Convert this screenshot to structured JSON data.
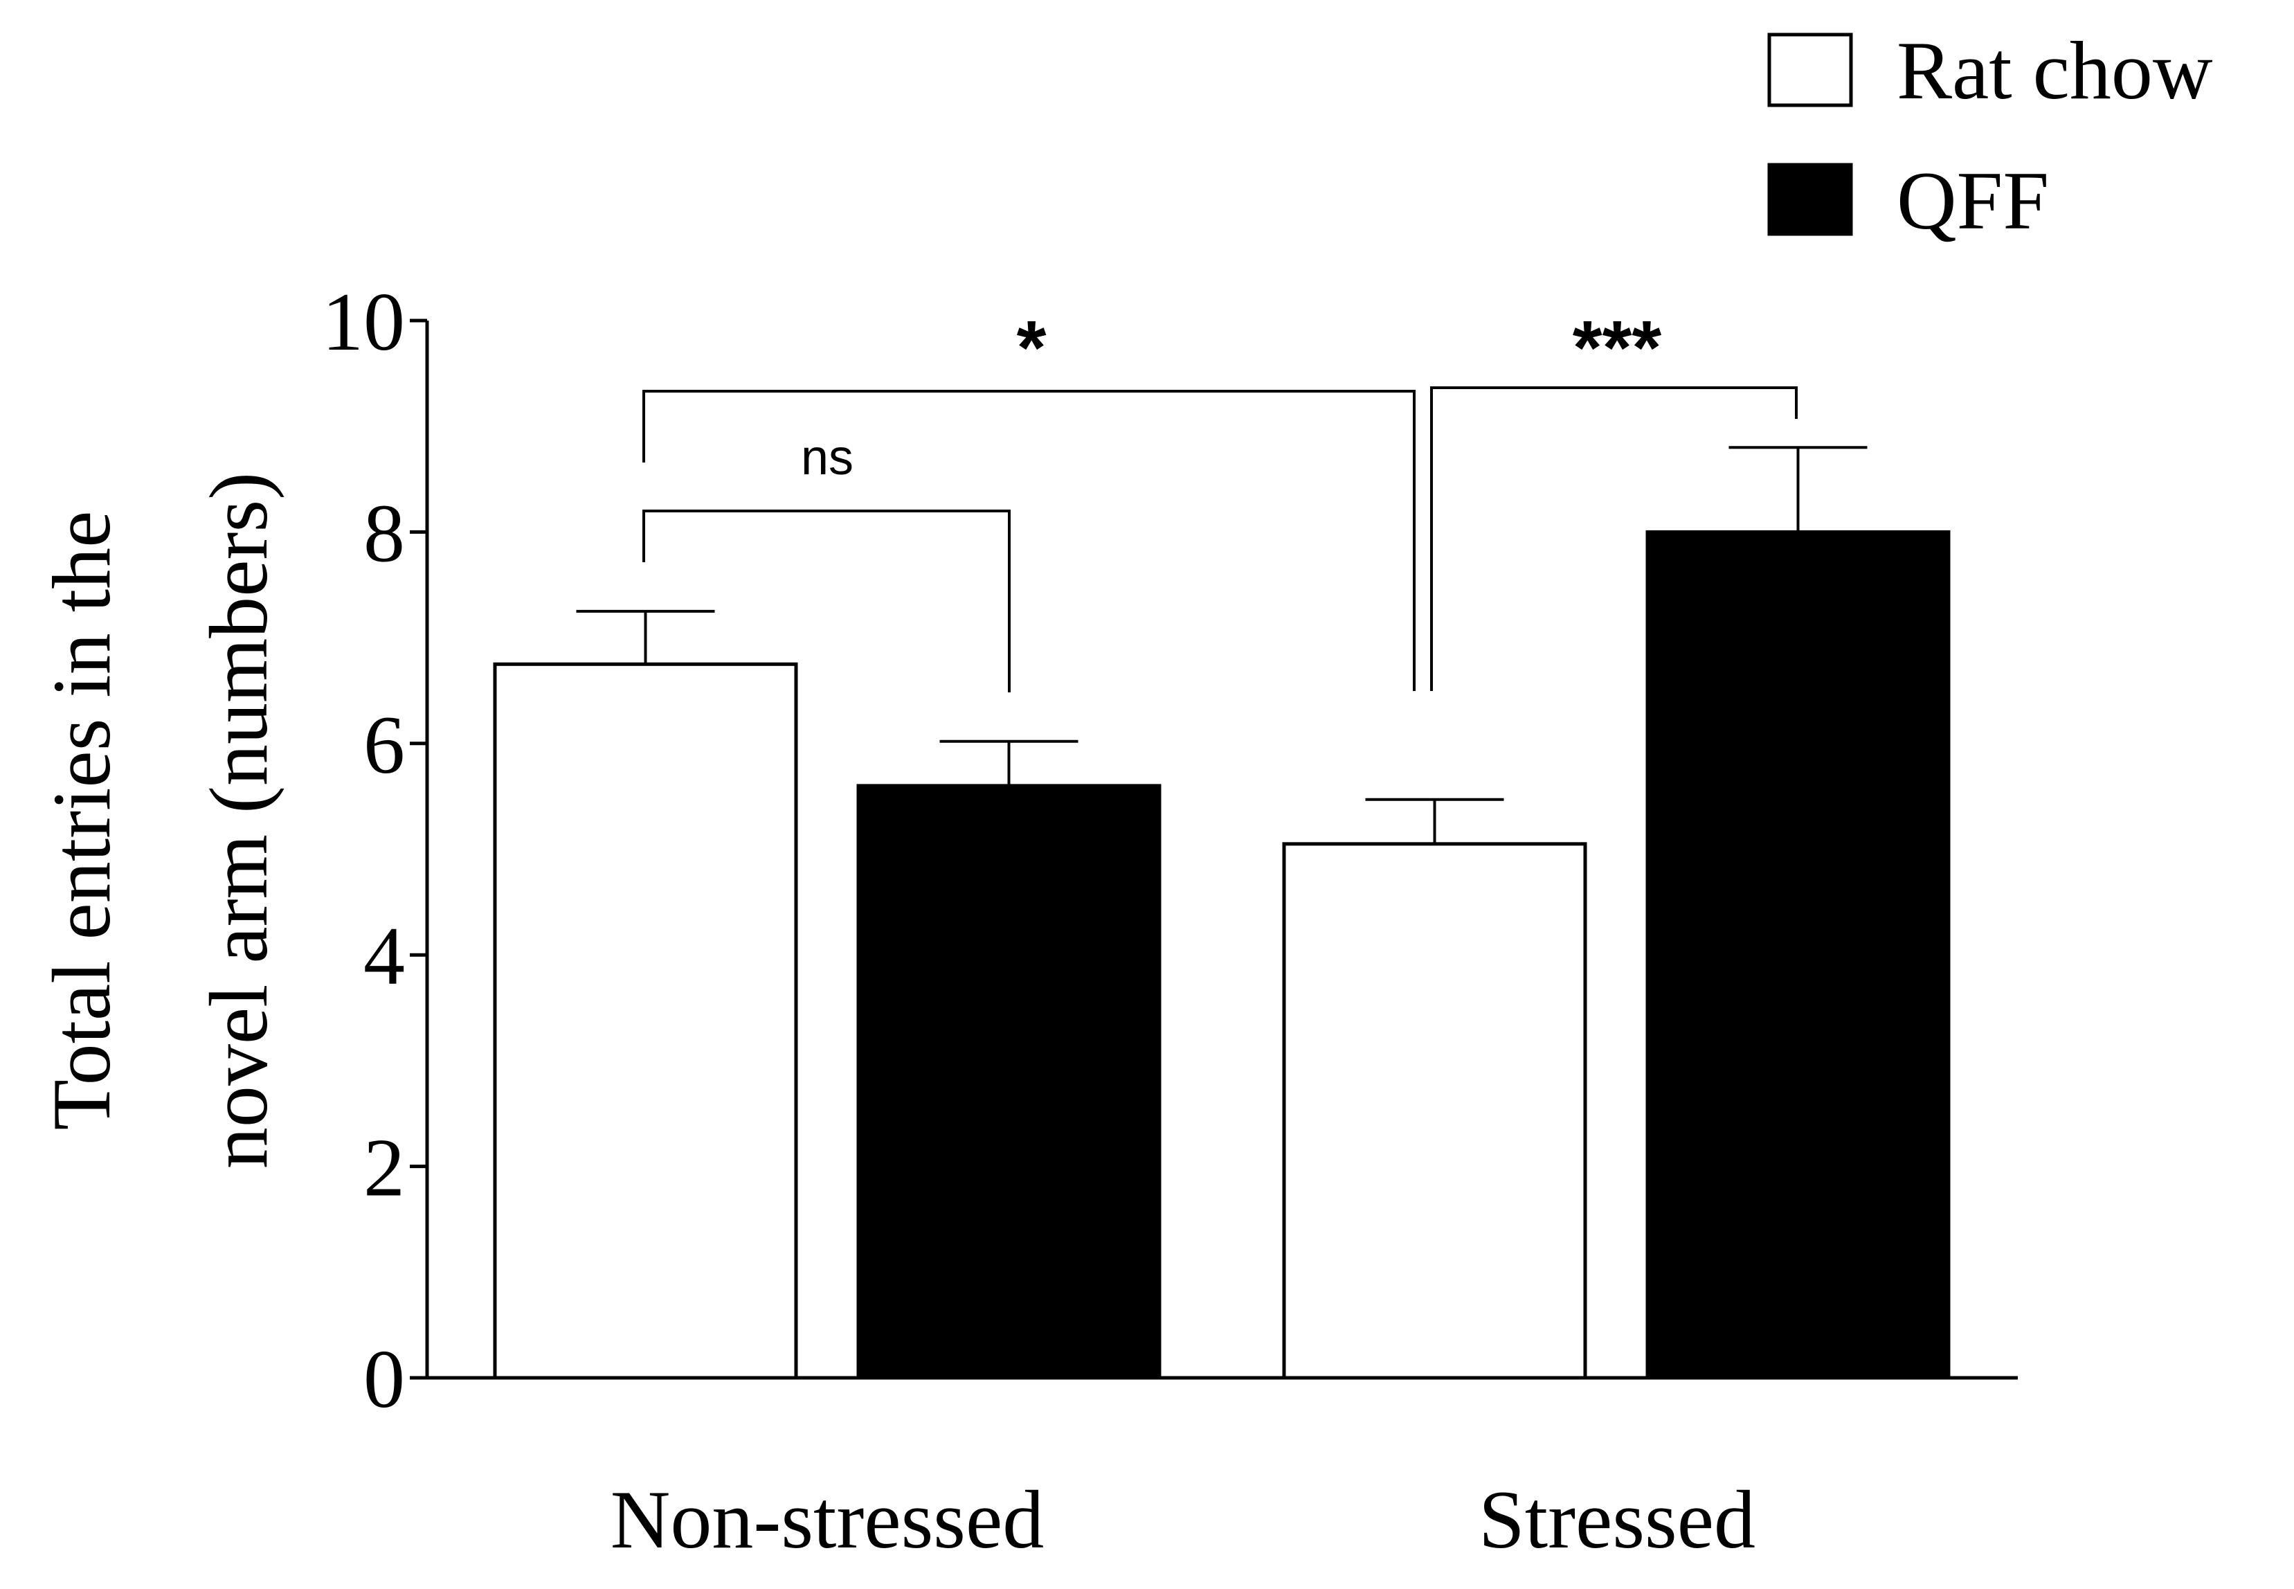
{
  "chart_data": {
    "type": "bar",
    "title": "",
    "xlabel": "",
    "ylabel": "Total entries in the novel arm (numbers)",
    "ylabel_lines": [
      "Total entries in the",
      "novel arm (numbers)"
    ],
    "ylim": [
      0,
      10
    ],
    "yticks": [
      0,
      2,
      4,
      6,
      8,
      10
    ],
    "ytick_labels": [
      "0",
      "2",
      "4",
      "6",
      "8",
      "10"
    ],
    "grid": false,
    "legend_position": "top-right",
    "categories": [
      "Non-stressed",
      "Stressed"
    ],
    "series": [
      {
        "name": "Rat chow",
        "fill": "#ffffff",
        "values": [
          6.75,
          5.05
        ],
        "errors": [
          0.5,
          0.42
        ]
      },
      {
        "name": "QFF",
        "fill": "#000000",
        "values": [
          5.6,
          8.0
        ],
        "errors": [
          0.42,
          0.8
        ]
      }
    ],
    "annotations": [
      {
        "label": "ns",
        "from": "Non-stressed/Rat chow",
        "to": "Non-stressed/QFF"
      },
      {
        "label": "*",
        "from": "Non-stressed/Rat chow",
        "to": "Stressed/Rat chow"
      },
      {
        "label": "***",
        "from": "Stressed/Rat chow",
        "to": "Stressed/QFF"
      }
    ]
  }
}
